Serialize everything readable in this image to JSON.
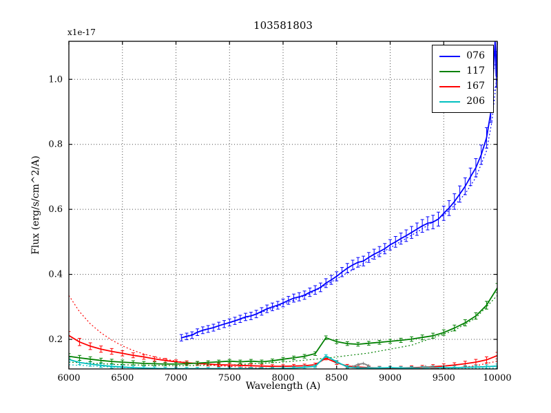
{
  "chart_data": {
    "type": "line",
    "title": "103581803",
    "offset_label": "x1e-17",
    "xlabel": "Wavelength (A)",
    "ylabel": "Flux (erg/s/cm^2/A)",
    "xlim": [
      6000,
      10000
    ],
    "ylim": [
      0.109,
      1.117
    ],
    "xticks": [
      6000,
      6500,
      7000,
      7500,
      8000,
      8500,
      9000,
      9500,
      10000
    ],
    "xtick_labels": [
      "6000",
      "6500",
      "7000",
      "7500",
      "8000",
      "8500",
      "9000",
      "9500",
      "10000"
    ],
    "yticks": [
      0.2,
      0.4,
      0.6,
      0.8,
      1.0
    ],
    "ytick_labels": [
      "0.2",
      "0.4",
      "0.6",
      "0.8",
      "1.0"
    ],
    "grid": true,
    "legend_position": "upper right",
    "series": [
      {
        "name": "076",
        "color": "#0000ff",
        "x": [
          7050,
          7100,
          7150,
          7200,
          7250,
          7300,
          7350,
          7400,
          7450,
          7500,
          7550,
          7600,
          7650,
          7700,
          7750,
          7800,
          7850,
          7900,
          7950,
          8000,
          8050,
          8100,
          8150,
          8200,
          8250,
          8300,
          8350,
          8400,
          8450,
          8500,
          8550,
          8600,
          8650,
          8700,
          8750,
          8800,
          8850,
          8900,
          8950,
          9000,
          9050,
          9100,
          9150,
          9200,
          9250,
          9300,
          9350,
          9400,
          9450,
          9500,
          9550,
          9600,
          9650,
          9700,
          9750,
          9800,
          9850,
          9900,
          9940,
          9960,
          9980,
          9990,
          10000
        ],
        "y": [
          0.205,
          0.209,
          0.213,
          0.222,
          0.228,
          0.232,
          0.236,
          0.242,
          0.247,
          0.252,
          0.257,
          0.263,
          0.269,
          0.272,
          0.278,
          0.286,
          0.294,
          0.3,
          0.305,
          0.312,
          0.32,
          0.327,
          0.331,
          0.336,
          0.345,
          0.352,
          0.36,
          0.373,
          0.383,
          0.394,
          0.407,
          0.419,
          0.429,
          0.437,
          0.441,
          0.452,
          0.462,
          0.47,
          0.479,
          0.491,
          0.5,
          0.51,
          0.519,
          0.529,
          0.539,
          0.549,
          0.557,
          0.561,
          0.57,
          0.588,
          0.604,
          0.624,
          0.647,
          0.671,
          0.7,
          0.728,
          0.768,
          0.82,
          0.9,
          1.0,
          1.12,
          1.01,
          1.12
        ],
        "yerr_profile": [
          [
            7050,
            0.01
          ],
          [
            8000,
            0.012
          ],
          [
            9000,
            0.016
          ],
          [
            9500,
            0.022
          ],
          [
            9800,
            0.028
          ],
          [
            10000,
            0.035
          ]
        ],
        "fit": {
          "x": [
            7050,
            7250,
            7500,
            7750,
            8000,
            8250,
            8500,
            8750,
            9000,
            9250,
            9500,
            9600,
            9700,
            9800,
            9900,
            9950,
            10000
          ],
          "y": [
            0.205,
            0.227,
            0.251,
            0.277,
            0.308,
            0.34,
            0.386,
            0.433,
            0.482,
            0.53,
            0.582,
            0.612,
            0.648,
            0.698,
            0.78,
            0.87,
            1.02
          ]
        }
      },
      {
        "name": "117",
        "color": "#008000",
        "x": [
          6000,
          6100,
          6200,
          6300,
          6400,
          6500,
          6600,
          6700,
          6800,
          6900,
          7000,
          7100,
          7200,
          7300,
          7400,
          7500,
          7600,
          7700,
          7800,
          7900,
          8000,
          8100,
          8200,
          8300,
          8400,
          8500,
          8600,
          8700,
          8800,
          8900,
          9000,
          9100,
          9200,
          9300,
          9400,
          9500,
          9600,
          9700,
          9800,
          9900,
          10000
        ],
        "y": [
          0.148,
          0.143,
          0.139,
          0.135,
          0.132,
          0.13,
          0.128,
          0.126,
          0.125,
          0.124,
          0.124,
          0.125,
          0.127,
          0.129,
          0.131,
          0.133,
          0.131,
          0.133,
          0.131,
          0.134,
          0.139,
          0.143,
          0.148,
          0.156,
          0.205,
          0.193,
          0.187,
          0.185,
          0.188,
          0.191,
          0.194,
          0.197,
          0.201,
          0.206,
          0.211,
          0.221,
          0.235,
          0.251,
          0.272,
          0.305,
          0.358
        ],
        "yerr_profile": [
          [
            6000,
            0.008
          ],
          [
            7000,
            0.005
          ],
          [
            9000,
            0.006
          ],
          [
            9800,
            0.01
          ],
          [
            10000,
            0.014
          ]
        ],
        "fit": {
          "x": [
            6000,
            6500,
            7000,
            7500,
            8000,
            8400,
            8800,
            9200,
            9600,
            9800,
            10000
          ],
          "y": [
            0.13,
            0.122,
            0.119,
            0.121,
            0.13,
            0.142,
            0.158,
            0.182,
            0.228,
            0.266,
            0.335
          ]
        }
      },
      {
        "name": "167",
        "color": "#ff0000",
        "x": [
          6000,
          6100,
          6200,
          6300,
          6400,
          6500,
          6600,
          6700,
          6800,
          6900,
          7000,
          7100,
          7200,
          7300,
          7400,
          7500,
          7600,
          7700,
          7800,
          7900,
          8000,
          8100,
          8200,
          8300,
          8400,
          8500,
          8600,
          8700,
          8800,
          8900,
          9000,
          9100,
          9200,
          9300,
          9400,
          9500,
          9600,
          9700,
          9800,
          9900,
          10000
        ],
        "y": [
          0.212,
          0.192,
          0.179,
          0.17,
          0.163,
          0.157,
          0.151,
          0.146,
          0.14,
          0.135,
          0.131,
          0.128,
          0.126,
          0.124,
          0.122,
          0.121,
          0.12,
          0.119,
          0.118,
          0.117,
          0.117,
          0.118,
          0.119,
          0.122,
          0.142,
          0.128,
          0.118,
          0.115,
          0.113,
          0.112,
          0.112,
          0.112,
          0.113,
          0.114,
          0.116,
          0.118,
          0.121,
          0.125,
          0.13,
          0.137,
          0.15
        ],
        "yerr_profile": [
          [
            6000,
            0.012
          ],
          [
            6500,
            0.008
          ],
          [
            7000,
            0.006
          ],
          [
            8000,
            0.005
          ],
          [
            9000,
            0.005
          ],
          [
            9600,
            0.007
          ],
          [
            10000,
            0.01
          ]
        ],
        "fit": {
          "x": [
            6000,
            6100,
            6200,
            6300,
            6400,
            6500,
            6600,
            6700,
            6800,
            6900,
            7000,
            7200,
            7400,
            7600,
            7800,
            8000,
            8400,
            8800,
            9200,
            9600,
            9800,
            10000
          ],
          "y": [
            0.335,
            0.285,
            0.248,
            0.22,
            0.198,
            0.18,
            0.166,
            0.155,
            0.146,
            0.139,
            0.133,
            0.125,
            0.119,
            0.115,
            0.112,
            0.11,
            0.107,
            0.106,
            0.107,
            0.112,
            0.119,
            0.133
          ]
        }
      },
      {
        "name": "206",
        "color": "#00bfbf",
        "x": [
          6000,
          6100,
          6200,
          6300,
          6400,
          6500,
          6600,
          6700,
          6800,
          6900,
          7000,
          7100,
          7200,
          7300,
          7400,
          7500,
          7600,
          7700,
          7800,
          7900,
          8000,
          8100,
          8200,
          8300,
          8400,
          8500,
          8600,
          8700,
          8800,
          8900,
          9000,
          9100,
          9200,
          9300,
          9400,
          9500,
          9600,
          9700,
          9800,
          9900,
          10000
        ],
        "y": [
          0.138,
          0.129,
          0.124,
          0.12,
          0.117,
          0.115,
          0.113,
          0.112,
          0.111,
          0.11,
          0.11,
          0.11,
          0.11,
          0.11,
          0.11,
          0.11,
          0.11,
          0.11,
          0.11,
          0.11,
          0.111,
          0.112,
          0.114,
          0.117,
          0.149,
          0.131,
          0.115,
          0.112,
          0.112,
          0.112,
          0.113,
          0.112,
          0.112,
          0.112,
          0.113,
          0.113,
          0.113,
          0.114,
          0.115,
          0.116,
          0.118
        ],
        "yerr_profile": [
          [
            6000,
            0.007
          ],
          [
            7000,
            0.004
          ],
          [
            9000,
            0.004
          ],
          [
            10000,
            0.006
          ]
        ],
        "fit": {
          "x": [
            6000,
            6500,
            7000,
            7500,
            8000,
            8500,
            9000,
            9500,
            10000
          ],
          "y": [
            0.122,
            0.113,
            0.109,
            0.108,
            0.108,
            0.108,
            0.108,
            0.109,
            0.112
          ]
        }
      }
    ],
    "masked_segments": {
      "color": "#888888",
      "segments": [
        {
          "x": [
            8650,
            8700,
            8750,
            8800
          ],
          "y": [
            0.116,
            0.123,
            0.126,
            0.119
          ]
        },
        {
          "x": [
            9280,
            9330,
            9380,
            9440
          ],
          "y": [
            0.111,
            0.116,
            0.114,
            0.11
          ]
        }
      ]
    }
  }
}
